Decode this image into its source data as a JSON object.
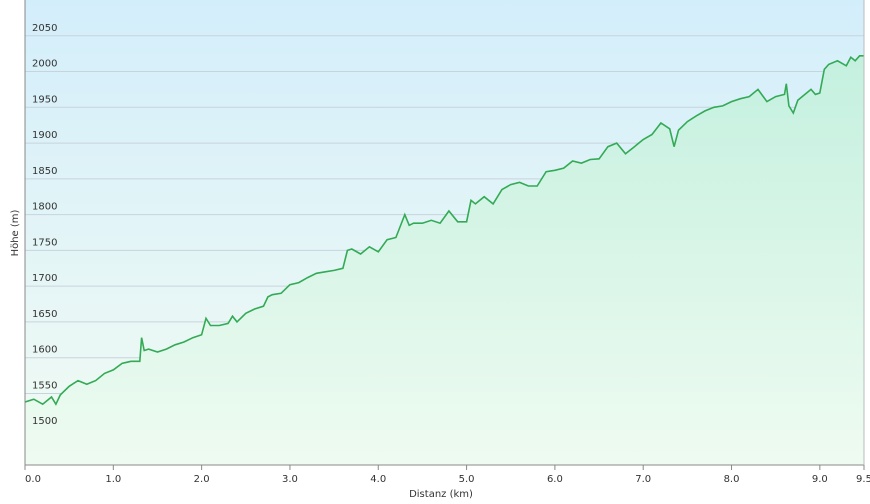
{
  "chart_data": {
    "type": "area",
    "x_label": "Distanz  (km)",
    "y_label": "Höhe (m)",
    "xlim": [
      0,
      9.5
    ],
    "ylim": [
      1450,
      2100
    ],
    "xticks": [
      {
        "value": 0,
        "label": "0.0"
      },
      {
        "value": 1,
        "label": "1.0"
      },
      {
        "value": 2,
        "label": "2.0"
      },
      {
        "value": 3,
        "label": "3.0"
      },
      {
        "value": 4,
        "label": "4.0"
      },
      {
        "value": 5,
        "label": "5.0"
      },
      {
        "value": 6,
        "label": "6.0"
      },
      {
        "value": 7,
        "label": "7.0"
      },
      {
        "value": 8,
        "label": "8.0"
      },
      {
        "value": 9,
        "label": "9.0"
      },
      {
        "value": 9.5,
        "label": "9.5"
      }
    ],
    "yticks": [
      1500,
      1550,
      1600,
      1650,
      1700,
      1750,
      1800,
      1850,
      1900,
      1950,
      2000,
      2050
    ],
    "grid": true,
    "color": "#33aa55",
    "x": [
      0,
      0.1,
      0.2,
      0.3,
      0.35,
      0.4,
      0.5,
      0.6,
      0.7,
      0.8,
      0.9,
      1.0,
      1.1,
      1.2,
      1.3,
      1.32,
      1.35,
      1.4,
      1.5,
      1.6,
      1.7,
      1.8,
      1.9,
      2.0,
      2.05,
      2.1,
      2.2,
      2.3,
      2.35,
      2.4,
      2.5,
      2.6,
      2.7,
      2.75,
      2.8,
      2.9,
      3.0,
      3.1,
      3.2,
      3.3,
      3.4,
      3.5,
      3.6,
      3.65,
      3.7,
      3.8,
      3.9,
      4.0,
      4.1,
      4.2,
      4.3,
      4.35,
      4.4,
      4.5,
      4.6,
      4.7,
      4.8,
      4.9,
      5.0,
      5.05,
      5.1,
      5.2,
      5.3,
      5.4,
      5.5,
      5.6,
      5.7,
      5.8,
      5.9,
      6.0,
      6.1,
      6.2,
      6.3,
      6.4,
      6.5,
      6.6,
      6.7,
      6.8,
      6.9,
      7.0,
      7.1,
      7.2,
      7.3,
      7.35,
      7.4,
      7.5,
      7.6,
      7.7,
      7.8,
      7.9,
      8.0,
      8.1,
      8.2,
      8.3,
      8.4,
      8.5,
      8.6,
      8.62,
      8.65,
      8.7,
      8.75,
      8.9,
      8.95,
      9.0,
      9.05,
      9.1,
      9.2,
      9.3,
      9.35,
      9.4,
      9.45,
      9.5
    ],
    "values": [
      1538,
      1542,
      1535,
      1545,
      1535,
      1548,
      1560,
      1568,
      1563,
      1568,
      1578,
      1583,
      1592,
      1595,
      1595,
      1628,
      1610,
      1612,
      1608,
      1612,
      1618,
      1622,
      1628,
      1632,
      1655,
      1645,
      1645,
      1648,
      1658,
      1650,
      1662,
      1668,
      1672,
      1685,
      1688,
      1690,
      1702,
      1705,
      1712,
      1718,
      1720,
      1722,
      1725,
      1750,
      1752,
      1745,
      1755,
      1748,
      1765,
      1768,
      1800,
      1785,
      1788,
      1788,
      1792,
      1788,
      1805,
      1790,
      1790,
      1820,
      1815,
      1825,
      1815,
      1835,
      1842,
      1845,
      1840,
      1840,
      1860,
      1862,
      1865,
      1875,
      1872,
      1877,
      1878,
      1895,
      1900,
      1885,
      1895,
      1905,
      1912,
      1928,
      1920,
      1895,
      1918,
      1930,
      1938,
      1945,
      1950,
      1952,
      1958,
      1962,
      1965,
      1975,
      1958,
      1965,
      1968,
      1983,
      1952,
      1942,
      1960,
      1975,
      1968,
      1970,
      2003,
      2010,
      2015,
      2008,
      2020,
      2015,
      2022,
      2022
    ]
  }
}
